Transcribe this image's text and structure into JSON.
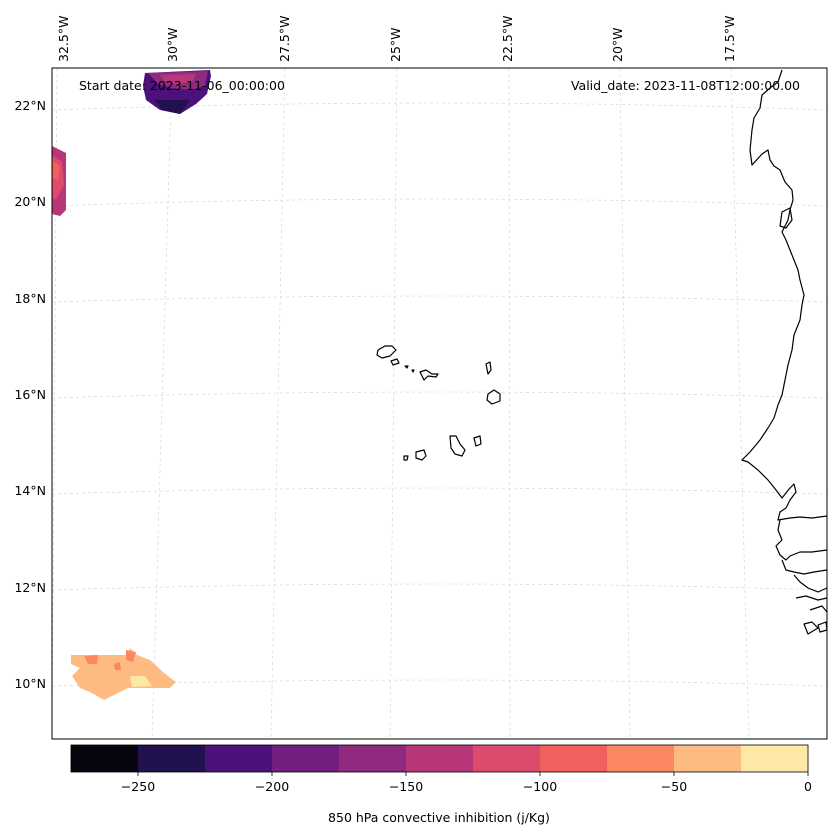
{
  "map": {
    "start_date": "Start date: 2023-11-06_00:00:00",
    "valid_date": "Valid_date: 2023-11-08T12:00:00.00",
    "lon_labels": [
      "32.5°W",
      "30°W",
      "27.5°W",
      "25°W",
      "22.5°W",
      "20°W",
      "17.5°W"
    ],
    "lat_labels": [
      "22°N",
      "20°N",
      "18°N",
      "16°N",
      "14°N",
      "12°N",
      "10°N"
    ]
  },
  "colorbar": {
    "label": "850 hPa convective inhibition (j/Kg)",
    "ticks": [
      "−250",
      "−200",
      "−150",
      "−100",
      "−50",
      "0"
    ],
    "colors": [
      "#05040f",
      "#21114e",
      "#4d117b",
      "#721f81",
      "#8f2a7f",
      "#b73779",
      "#dc4a6c",
      "#f1605d",
      "#fb8761",
      "#febb81",
      "#fde9a5"
    ]
  },
  "chart_data": {
    "type": "contour-map",
    "variable": "850 hPa convective inhibition",
    "units": "j/Kg",
    "levels": [
      -275,
      -250,
      -225,
      -200,
      -175,
      -150,
      -125,
      -100,
      -75,
      -50,
      -25,
      0
    ],
    "lon_range": [
      -33,
      -16.5
    ],
    "lat_range": [
      9,
      23
    ],
    "title_left": "Start date: 2023-11-06_00:00:00",
    "title_right": "Valid_date: 2023-11-08T12:00:00.00"
  }
}
